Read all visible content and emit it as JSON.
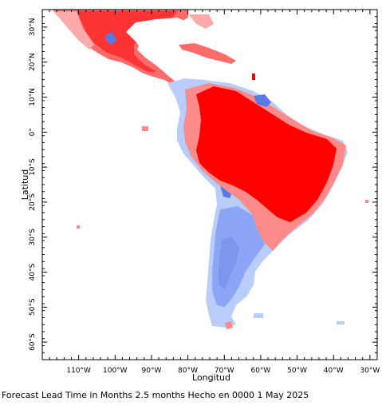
{
  "map": {
    "x_axis_title": "Longitud",
    "y_axis_title": "Latitud",
    "lon_range": [
      -120,
      -28
    ],
    "lat_range": [
      -65,
      35
    ],
    "lon_ticks": [
      -110,
      -100,
      -90,
      -80,
      -70,
      -60,
      -50,
      -40,
      -30
    ],
    "lon_tick_labels": [
      "110°W",
      "100°W",
      "90°W",
      "80°W",
      "70°W",
      "60°W",
      "50°W",
      "40°W",
      "30°W"
    ],
    "lat_ticks": [
      30,
      20,
      10,
      0,
      -10,
      -20,
      -30,
      -40,
      -50,
      -60
    ],
    "lat_tick_labels": [
      "30°N",
      "20°N",
      "10°N",
      "0°",
      "10°S",
      "20°S",
      "30°S",
      "40°S",
      "50°S",
      "60°S"
    ],
    "colors": {
      "strong_positive": "#ff0000",
      "positive": "#ff6b6b",
      "weak_positive": "#ffaaaa",
      "strong_negative": "#5a78e6",
      "negative": "#8ca5f5",
      "weak_negative": "#b9cdfa"
    }
  },
  "caption": "Forecast Lead Time in Months 2.5 months Hecho en 0000 1 May 2025"
}
